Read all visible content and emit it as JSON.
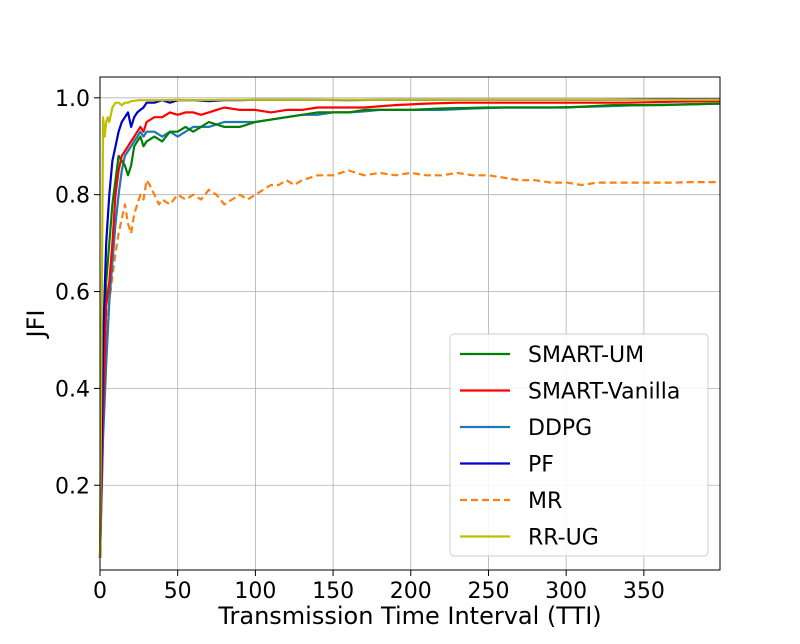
{
  "chart_data": {
    "type": "line",
    "title": "",
    "xlabel": "Transmission Time Interval (TTI)",
    "ylabel": "JFI",
    "xlim": [
      0,
      399
    ],
    "ylim": [
      0.025,
      1.043
    ],
    "xticks": [
      0,
      50,
      100,
      150,
      200,
      250,
      300,
      350
    ],
    "yticks": [
      0.2,
      0.4,
      0.6,
      0.8,
      1.0
    ],
    "xtick_labels": [
      "0",
      "50",
      "100",
      "150",
      "200",
      "250",
      "300",
      "350"
    ],
    "ytick_labels": [
      "0.2",
      "0.4",
      "0.6",
      "0.8",
      "1.0"
    ],
    "grid": true,
    "legend_position": "lower-right",
    "series": [
      {
        "name": "SMART-UM",
        "color": "#008000",
        "style": "solid",
        "x": [
          0,
          2,
          4,
          6,
          8,
          10,
          12,
          14,
          16,
          18,
          20,
          22,
          24,
          26,
          28,
          30,
          35,
          40,
          45,
          50,
          55,
          60,
          65,
          70,
          80,
          90,
          100,
          110,
          120,
          130,
          140,
          150,
          160,
          170,
          180,
          200,
          220,
          250,
          270,
          300,
          330,
          360,
          399
        ],
        "y": [
          0.05,
          0.4,
          0.62,
          0.7,
          0.78,
          0.83,
          0.88,
          0.87,
          0.86,
          0.84,
          0.86,
          0.9,
          0.91,
          0.92,
          0.9,
          0.91,
          0.92,
          0.91,
          0.93,
          0.93,
          0.94,
          0.93,
          0.94,
          0.95,
          0.94,
          0.94,
          0.95,
          0.955,
          0.96,
          0.965,
          0.97,
          0.97,
          0.97,
          0.975,
          0.975,
          0.975,
          0.978,
          0.98,
          0.98,
          0.98,
          0.985,
          0.985,
          0.988
        ]
      },
      {
        "name": "SMART-Vanilla",
        "color": "#ff0000",
        "style": "solid",
        "x": [
          0,
          2,
          4,
          6,
          8,
          10,
          12,
          14,
          16,
          18,
          20,
          22,
          24,
          26,
          28,
          30,
          35,
          40,
          45,
          50,
          55,
          60,
          65,
          70,
          75,
          80,
          90,
          100,
          110,
          120,
          130,
          140,
          150,
          170,
          190,
          210,
          230,
          250,
          280,
          310,
          340,
          370,
          399
        ],
        "y": [
          0.05,
          0.35,
          0.57,
          0.62,
          0.7,
          0.8,
          0.85,
          0.88,
          0.89,
          0.9,
          0.91,
          0.92,
          0.93,
          0.94,
          0.93,
          0.95,
          0.96,
          0.96,
          0.97,
          0.965,
          0.97,
          0.97,
          0.965,
          0.97,
          0.975,
          0.98,
          0.975,
          0.975,
          0.97,
          0.975,
          0.975,
          0.98,
          0.98,
          0.98,
          0.985,
          0.988,
          0.99,
          0.99,
          0.99,
          0.99,
          0.99,
          0.992,
          0.993
        ]
      },
      {
        "name": "DDPG",
        "color": "#1f77b4",
        "style": "solid",
        "x": [
          0,
          2,
          4,
          6,
          8,
          10,
          12,
          14,
          16,
          18,
          20,
          22,
          24,
          26,
          28,
          30,
          35,
          40,
          45,
          50,
          55,
          60,
          70,
          80,
          90,
          100,
          110,
          120,
          130,
          140,
          150,
          160,
          170,
          180,
          200,
          220,
          240,
          260,
          290,
          320,
          350,
          399
        ],
        "y": [
          0.05,
          0.3,
          0.45,
          0.58,
          0.66,
          0.74,
          0.8,
          0.85,
          0.88,
          0.89,
          0.9,
          0.91,
          0.92,
          0.93,
          0.92,
          0.93,
          0.93,
          0.92,
          0.93,
          0.92,
          0.93,
          0.94,
          0.94,
          0.95,
          0.95,
          0.95,
          0.955,
          0.96,
          0.965,
          0.965,
          0.97,
          0.97,
          0.972,
          0.975,
          0.975,
          0.975,
          0.978,
          0.98,
          0.98,
          0.982,
          0.985,
          0.988
        ]
      },
      {
        "name": "PF",
        "color": "#0000cd",
        "style": "solid",
        "x": [
          0,
          2,
          4,
          6,
          8,
          10,
          12,
          14,
          16,
          18,
          20,
          22,
          24,
          26,
          28,
          30,
          35,
          40,
          45,
          50,
          60,
          70,
          80,
          90,
          100,
          120,
          140,
          160,
          180,
          200,
          240,
          280,
          320,
          360,
          399
        ],
        "y": [
          0.05,
          0.5,
          0.7,
          0.8,
          0.87,
          0.9,
          0.93,
          0.95,
          0.96,
          0.97,
          0.94,
          0.96,
          0.97,
          0.975,
          0.98,
          0.99,
          0.99,
          0.995,
          0.99,
          0.995,
          0.995,
          0.993,
          0.995,
          0.995,
          0.996,
          0.996,
          0.996,
          0.995,
          0.996,
          0.996,
          0.996,
          0.996,
          0.996,
          0.997,
          0.997
        ]
      },
      {
        "name": "MR",
        "color": "#ff7f0e",
        "style": "dashed",
        "x": [
          0,
          2,
          4,
          6,
          8,
          10,
          12,
          14,
          16,
          18,
          20,
          22,
          24,
          26,
          28,
          30,
          32,
          35,
          38,
          40,
          45,
          50,
          55,
          60,
          65,
          70,
          75,
          80,
          85,
          90,
          95,
          100,
          105,
          110,
          115,
          120,
          125,
          130,
          140,
          150,
          160,
          170,
          180,
          190,
          200,
          210,
          220,
          230,
          240,
          250,
          260,
          270,
          280,
          290,
          300,
          310,
          320,
          330,
          340,
          350,
          360,
          370,
          380,
          399
        ],
        "y": [
          0.05,
          0.32,
          0.5,
          0.58,
          0.63,
          0.68,
          0.72,
          0.75,
          0.78,
          0.74,
          0.72,
          0.76,
          0.78,
          0.8,
          0.79,
          0.83,
          0.82,
          0.8,
          0.78,
          0.79,
          0.78,
          0.8,
          0.79,
          0.8,
          0.79,
          0.81,
          0.8,
          0.78,
          0.79,
          0.8,
          0.79,
          0.8,
          0.81,
          0.82,
          0.82,
          0.83,
          0.82,
          0.83,
          0.84,
          0.84,
          0.85,
          0.84,
          0.845,
          0.84,
          0.845,
          0.84,
          0.84,
          0.845,
          0.84,
          0.84,
          0.835,
          0.83,
          0.83,
          0.825,
          0.825,
          0.82,
          0.825,
          0.825,
          0.825,
          0.825,
          0.825,
          0.825,
          0.826,
          0.826
        ]
      },
      {
        "name": "RR-UG",
        "color": "#bfbf00",
        "style": "solid",
        "x": [
          0,
          2,
          3,
          4,
          5,
          6,
          8,
          10,
          12,
          14,
          16,
          18,
          20,
          25,
          30,
          40,
          50,
          60,
          80,
          100,
          150,
          200,
          250,
          300,
          350,
          399
        ],
        "y": [
          0.05,
          0.96,
          0.92,
          0.95,
          0.96,
          0.95,
          0.98,
          0.99,
          0.99,
          0.985,
          0.99,
          0.99,
          0.993,
          0.995,
          0.995,
          0.995,
          0.996,
          0.995,
          0.996,
          0.996,
          0.996,
          0.996,
          0.996,
          0.996,
          0.996,
          0.996
        ]
      }
    ]
  }
}
